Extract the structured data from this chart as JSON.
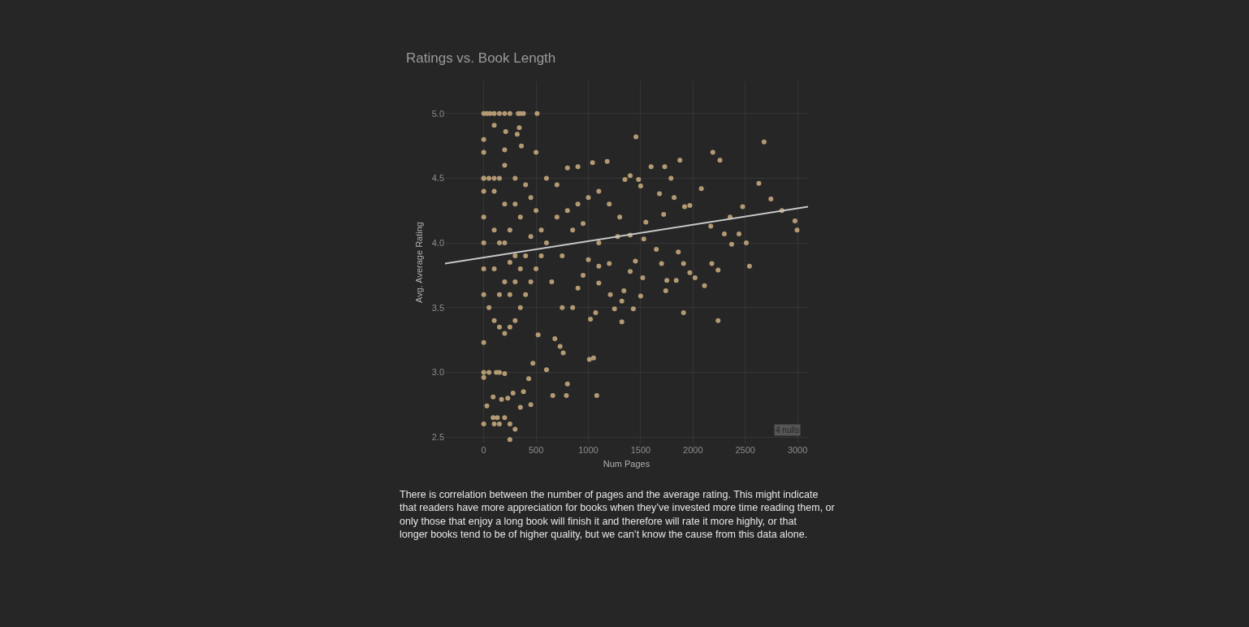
{
  "chart_data": {
    "type": "scatter",
    "title": "Ratings vs. Book Length",
    "xlabel": "Num Pages",
    "ylabel": "Avg. Average Rating",
    "xlim": [
      -370,
      3100
    ],
    "xticks": [
      0,
      500,
      1000,
      1500,
      2000,
      2500,
      3000
    ],
    "ylim": [
      2.45,
      5.25
    ],
    "yticks": [
      {
        "value": 2.5,
        "label": "2.5"
      },
      {
        "value": 3,
        "label": "3.0"
      },
      {
        "value": 3.5,
        "label": "3.5"
      },
      {
        "value": 4,
        "label": "4.0"
      },
      {
        "value": 4.5,
        "label": "4.5"
      },
      {
        "value": 5,
        "label": "5.0"
      }
    ],
    "grid": true,
    "marker": "circle",
    "series": [
      {
        "color": "#b49a73",
        "x": [
          0,
          30,
          60,
          100,
          150,
          200,
          250,
          330,
          350,
          380,
          510,
          1455,
          2680,
          2190,
          2258,
          1875,
          1600,
          1730,
          2630,
          2745,
          2080,
          2850,
          2975,
          2995,
          2355,
          2475,
          2170,
          2300,
          2370,
          2440,
          2510,
          2540,
          2180,
          2240,
          2240,
          1910,
          2110,
          1970,
          2020,
          1910,
          1970,
          1920,
          1820,
          1790,
          1720,
          1680,
          1650,
          1700,
          1740,
          1750,
          1840,
          1860,
          1500,
          1430,
          1320,
          1320,
          1340,
          1250,
          1210,
          1100,
          1070,
          1020,
          1010,
          1050,
          1080,
          800,
          790,
          660,
          760,
          730,
          600,
          680,
          520,
          470,
          450,
          430,
          300,
          250,
          150,
          100,
          0,
          90,
          130,
          200,
          250,
          30,
          350,
          380,
          280,
          230,
          170,
          90,
          0,
          0,
          50,
          120,
          150,
          200,
          0,
          0,
          0,
          100,
          210,
          340,
          320,
          200,
          500,
          360,
          1180,
          1040,
          900,
          800,
          1400,
          1350,
          1480,
          1500,
          1300,
          1550,
          1400,
          1280,
          1530,
          1450,
          1400,
          1520,
          1200,
          1100,
          1000,
          950,
          900,
          850,
          750,
          650,
          1100,
          1000,
          1200,
          900,
          800,
          700,
          600,
          700,
          750,
          850,
          950,
          1100,
          0,
          0,
          0,
          0,
          0,
          0,
          50,
          100,
          150,
          200,
          250,
          300,
          350,
          400,
          450,
          500,
          550,
          600,
          550,
          500,
          450,
          400,
          300,
          200,
          150,
          100,
          100,
          150,
          200,
          250,
          300,
          350,
          400,
          200,
          100,
          250,
          300,
          350,
          450,
          150,
          200,
          300,
          250,
          0,
          50,
          100
        ],
        "values": [
          5,
          5,
          5,
          5,
          5,
          5,
          5,
          5,
          5,
          5,
          5,
          4.82,
          4.78,
          4.7,
          4.64,
          4.64,
          4.59,
          4.59,
          4.46,
          4.34,
          4.42,
          4.25,
          4.17,
          4.1,
          4.2,
          4.28,
          4.13,
          4.07,
          3.99,
          4.07,
          4,
          3.82,
          3.84,
          3.79,
          3.4,
          3.46,
          3.67,
          3.77,
          3.73,
          3.84,
          4.29,
          4.28,
          4.35,
          4.5,
          4.22,
          4.38,
          3.95,
          3.84,
          3.63,
          3.71,
          3.71,
          3.93,
          3.59,
          3.49,
          3.39,
          3.55,
          3.63,
          3.49,
          3.6,
          3.69,
          3.46,
          3.41,
          3.1,
          3.11,
          2.82,
          2.91,
          2.82,
          2.82,
          3.15,
          3.2,
          3.02,
          3.26,
          3.29,
          3.07,
          2.75,
          2.95,
          2.56,
          2.48,
          2.6,
          2.6,
          2.6,
          2.65,
          2.65,
          2.65,
          2.6,
          2.74,
          2.73,
          2.85,
          2.84,
          2.8,
          2.79,
          2.81,
          2.96,
          3,
          3,
          3,
          3,
          2.99,
          3.23,
          4.8,
          4.7,
          4.91,
          4.86,
          4.89,
          4.84,
          4.72,
          4.7,
          4.75,
          4.63,
          4.62,
          4.59,
          4.58,
          4.52,
          4.49,
          4.49,
          4.44,
          4.2,
          4.16,
          4.06,
          4.05,
          4.03,
          3.86,
          3.78,
          3.73,
          3.84,
          3.82,
          3.87,
          3.75,
          3.65,
          3.5,
          3.5,
          3.7,
          4.4,
          4.35,
          4.3,
          4.3,
          4.25,
          4.45,
          4.5,
          4.2,
          3.9,
          4.1,
          4.15,
          4,
          3.6,
          3.8,
          4,
          4.2,
          4.4,
          4.5,
          3.5,
          3.4,
          3.35,
          3.3,
          3.35,
          3.4,
          3.5,
          3.6,
          3.7,
          3.8,
          3.9,
          4,
          4.1,
          4.25,
          4.35,
          4.45,
          4.5,
          4.6,
          4.5,
          4.4,
          3.8,
          4,
          3.7,
          4.1,
          3.9,
          4.2,
          3.9,
          4.3,
          4.1,
          3.6,
          3.7,
          3.8,
          4.05,
          3.6,
          4,
          4.3,
          3.85,
          4.5,
          4.5,
          4.5
        ]
      },
      {
        "type": "line",
        "color": "#c8c8c8",
        "marker": "none",
        "line_style": "solid",
        "x": [
          -370,
          3100
        ],
        "values": [
          3.84,
          4.28
        ]
      }
    ],
    "annotations": [
      "4 nulls",
      "There is correlation between the number of pages and the average rating. This might indicate that readers have more appreciation for books when they’ve invested more time reading them, or only those that enjoy a long book will finish it and therefore will rate it more highly, or that longer books tend to be of higher quality, but we can’t know the cause from this data alone."
    ]
  }
}
